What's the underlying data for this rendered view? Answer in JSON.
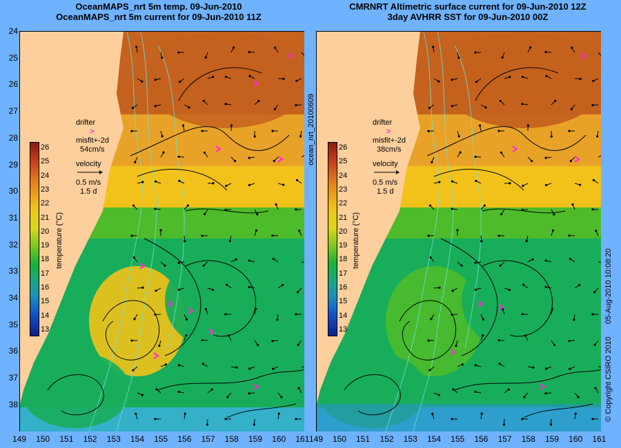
{
  "left_panel": {
    "title_line1": "OceanMAPS_nrt 5m temp. 09-Jun-2010",
    "title_line2": "OceanMAPS_nrt 5m current for 09-Jun-2010 11Z",
    "drifter_label": "drifter",
    "misfit_label": "misfit+-2d",
    "misfit_value": "54cm/s",
    "velocity_label": "velocity",
    "velocity_scale": "0.5 m/s",
    "velocity_days": "1.5 d",
    "colorbar_label": "temperature (°C)"
  },
  "right_panel": {
    "title_line1": "CMRNRT Altimetric surface current for 09-Jun-2010 12Z",
    "title_line2": "3day AVHRR SST for 09-Jun-2010 00Z",
    "drifter_label": "drifter",
    "misfit_label": "misfit+-2d",
    "misfit_value": "38cm/s",
    "velocity_label": "velocity",
    "velocity_scale": "0.5 m/s",
    "velocity_days": "1.5 d",
    "colorbar_label": "temperature (°C)"
  },
  "side_labels": {
    "product_id": "ocean_nrt_20100609",
    "copyright": "© Copyright CSIRO 2010",
    "timestamp": "05-Aug-2010 10:08:20"
  },
  "lat_ticks": [
    "24",
    "25",
    "26",
    "27",
    "28",
    "29",
    "30",
    "31",
    "32",
    "33",
    "34",
    "35",
    "36",
    "37",
    "38"
  ],
  "lon_ticks_left": [
    "149",
    "150",
    "151",
    "152",
    "153",
    "154",
    "155",
    "156",
    "157",
    "158",
    "159",
    "160",
    "161"
  ],
  "lon_ticks_right": [
    "152",
    "153",
    "154",
    "155",
    "156",
    "157",
    "158",
    "159",
    "160",
    "161"
  ],
  "right_lon_first": "149",
  "right_lon_second": "150",
  "right_lon_third": "151",
  "colorbar_ticks": [
    "26",
    "25",
    "24",
    "23",
    "22",
    "21",
    "20",
    "19",
    "18",
    "17",
    "16",
    "15",
    "14",
    "13"
  ],
  "colors": {
    "land": "#fdcf9c",
    "warm_core": "#c4621e",
    "warm": "#e8a228",
    "mid": "#f2c21a",
    "cool_green": "#4dbb2a",
    "cold_green": "#18ad5a",
    "deep": "#34b0c8",
    "drifter": "#ff2bd6",
    "contour": "#6fe0d8",
    "background": "#6fb2ff"
  }
}
